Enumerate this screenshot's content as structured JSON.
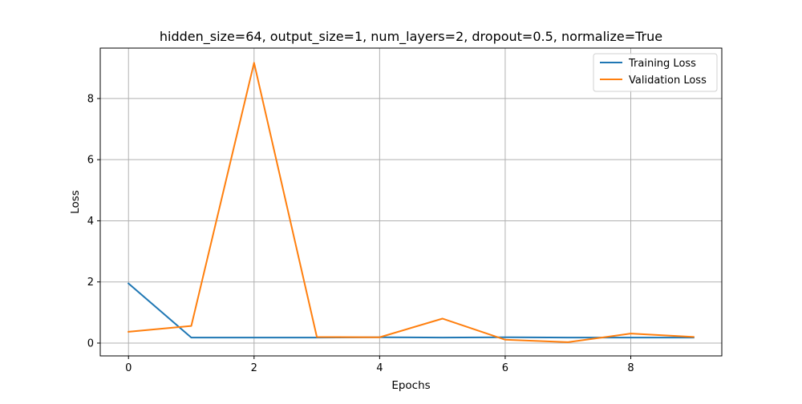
{
  "chart_data": {
    "type": "line",
    "title": "hidden_size=64, output_size=1, num_layers=2, dropout=0.5, normalize=True",
    "xlabel": "Epochs",
    "ylabel": "Loss",
    "x": [
      0,
      1,
      2,
      3,
      4,
      5,
      6,
      7,
      8,
      9
    ],
    "xlim": [
      -0.45,
      9.45
    ],
    "ylim": [
      -0.42,
      9.65
    ],
    "xticks": [
      0,
      2,
      4,
      6,
      8
    ],
    "yticks": [
      0,
      2,
      4,
      6,
      8
    ],
    "grid": true,
    "legend_position": "top-right",
    "series": [
      {
        "name": "Training Loss",
        "color": "#1f77b4",
        "values": [
          1.95,
          0.18,
          0.18,
          0.18,
          0.19,
          0.18,
          0.19,
          0.18,
          0.18,
          0.18
        ]
      },
      {
        "name": "Validation Loss",
        "color": "#ff7f0e",
        "values": [
          0.37,
          0.56,
          9.17,
          0.2,
          0.19,
          0.8,
          0.11,
          0.03,
          0.31,
          0.2
        ]
      }
    ]
  }
}
